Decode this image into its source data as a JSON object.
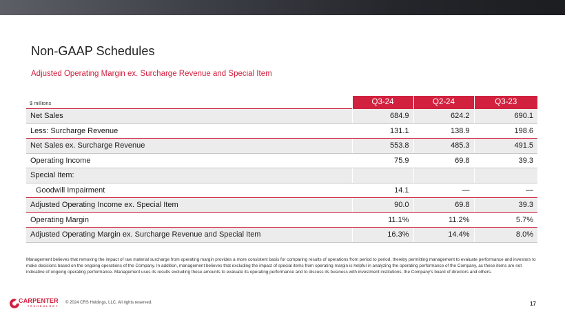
{
  "title": "Non-GAAP Schedules",
  "subtitle": "Adjusted Operating Margin ex. Surcharge Revenue and Special Item",
  "unit_label": "$ millions",
  "columns": [
    "Q3-24",
    "Q2-24",
    "Q3-23"
  ],
  "rows": [
    {
      "label": "Net Sales",
      "values": [
        "684.9",
        "624.2",
        "690.1"
      ]
    },
    {
      "label": "Less: Surcharge Revenue",
      "values": [
        "131.1",
        "138.9",
        "198.6"
      ]
    },
    {
      "label": "Net Sales ex. Surcharge Revenue",
      "values": [
        "553.8",
        "485.3",
        "491.5"
      ]
    },
    {
      "label": "Operating Income",
      "values": [
        "75.9",
        "69.8",
        "39.3"
      ]
    },
    {
      "label": "Special Item:",
      "values": [
        "",
        "",
        ""
      ]
    },
    {
      "label": "Goodwill Impairment",
      "values": [
        "14.1",
        "—",
        "—"
      ]
    },
    {
      "label": "Adjusted Operating Income ex. Special Item",
      "values": [
        "90.0",
        "69.8",
        "39.3"
      ]
    },
    {
      "label": "Operating Margin",
      "values": [
        "11.1%",
        "11.2%",
        "5.7%"
      ]
    },
    {
      "label": "Adjusted Operating Margin ex. Surcharge Revenue and Special Item",
      "values": [
        "16.3%",
        "14.4%",
        "8.0%"
      ]
    }
  ],
  "footnote": "Management believes that removing the impact of raw material surcharge from operating margin provides a more consistent basis for comparing results of operations from period to period, thereby permitting management to evaluate performance and investors to make decisions based on the ongoing operations of the Company. In addition, management believes that excluding the impact of special items from operating margin is helpful in analyzing the operating performance of the Company, as these items are not indicative of ongoing operating performance. Management uses its results excluding these amounts to evaluate its operating performance and to discuss its business with investment institutions, the Company's board of directors and others.",
  "footer": {
    "brand": "CARPENTER",
    "brand_sub": "TECHNOLOGY",
    "copyright": "© 2024 CRS Holdings, LLC. All rights reserved.",
    "page_number": "17"
  },
  "colors": {
    "accent": "#d2213f",
    "shade": "#ececec"
  }
}
